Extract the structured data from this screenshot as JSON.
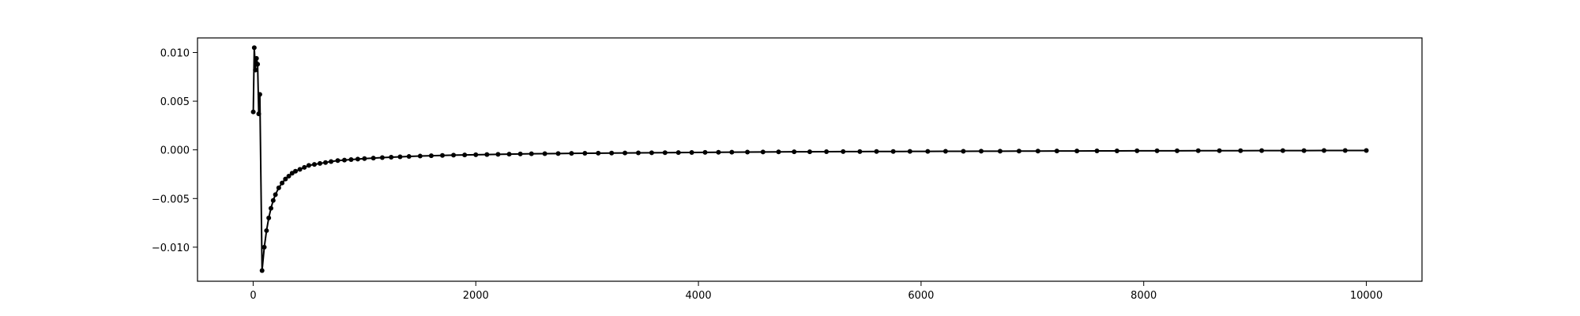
{
  "chart_data": {
    "type": "line",
    "title": "",
    "xlabel": "",
    "ylabel": "",
    "xlim": [
      -500,
      10500
    ],
    "ylim": [
      -0.0135,
      0.0115
    ],
    "grid": false,
    "line_color": "#000000",
    "marker": "dot",
    "x_ticks": [
      {
        "value": 0,
        "label": "0"
      },
      {
        "value": 2000,
        "label": "2000"
      },
      {
        "value": 4000,
        "label": "4000"
      },
      {
        "value": 6000,
        "label": "6000"
      },
      {
        "value": 8000,
        "label": "8000"
      },
      {
        "value": 10000,
        "label": "10000"
      }
    ],
    "y_ticks": [
      {
        "value": 0.01,
        "label": "0.010"
      },
      {
        "value": 0.005,
        "label": "0.005"
      },
      {
        "value": 0.0,
        "label": "0.000"
      },
      {
        "value": -0.005,
        "label": "−0.005"
      },
      {
        "value": -0.01,
        "label": "−0.010"
      }
    ],
    "series": [
      {
        "x": [
          1,
          10,
          20,
          30,
          40,
          50,
          60,
          80,
          100,
          120,
          140,
          160,
          180,
          200,
          230,
          260,
          290,
          320,
          350,
          380,
          420,
          460,
          500,
          550,
          600,
          650,
          700,
          760,
          820,
          880,
          940,
          1000,
          1080,
          1160,
          1240,
          1320,
          1400,
          1500,
          1600,
          1700,
          1800,
          1900,
          2000,
          2100,
          2200,
          2300,
          2400,
          2500,
          2620,
          2740,
          2860,
          2980,
          3100,
          3220,
          3340,
          3460,
          3580,
          3700,
          3820,
          3940,
          4060,
          4180,
          4300,
          4440,
          4580,
          4720,
          4860,
          5000,
          5150,
          5300,
          5450,
          5600,
          5750,
          5900,
          6060,
          6220,
          6380,
          6540,
          6710,
          6880,
          7050,
          7220,
          7400,
          7580,
          7760,
          7940,
          8120,
          8300,
          8490,
          8680,
          8870,
          9060,
          9250,
          9440,
          9620,
          9810,
          10000
        ],
        "y": [
          0.0039,
          0.0105,
          0.0082,
          0.0094,
          0.0088,
          0.0037,
          0.0057,
          -0.0124,
          -0.01,
          -0.0083,
          -0.007,
          -0.006,
          -0.0052,
          -0.0046,
          -0.0039,
          -0.0034,
          -0.003,
          -0.0027,
          -0.0024,
          -0.0022,
          -0.002,
          -0.0018,
          -0.0016,
          -0.0015,
          -0.0014,
          -0.0013,
          -0.0012,
          -0.0011,
          -0.00105,
          -0.001,
          -0.00095,
          -0.0009,
          -0.00085,
          -0.0008,
          -0.00076,
          -0.00072,
          -0.00068,
          -0.00064,
          -0.0006,
          -0.00057,
          -0.00054,
          -0.00052,
          -0.0005,
          -0.00048,
          -0.00046,
          -0.00044,
          -0.00042,
          -0.0004,
          -0.00039,
          -0.00038,
          -0.00036,
          -0.00035,
          -0.00034,
          -0.00033,
          -0.00032,
          -0.00031,
          -0.0003,
          -0.00029,
          -0.00028,
          -0.00027,
          -0.00026,
          -0.00025,
          -0.00024,
          -0.00023,
          -0.00022,
          -0.00021,
          -0.0002,
          -0.0002,
          -0.00019,
          -0.00018,
          -0.00018,
          -0.00017,
          -0.00017,
          -0.00016,
          -0.00016,
          -0.00015,
          -0.00015,
          -0.00014,
          -0.00014,
          -0.00013,
          -0.00013,
          -0.00012,
          -0.00012,
          -0.00011,
          -0.00011,
          -0.0001,
          -0.0001,
          -0.0001,
          -9e-05,
          -9e-05,
          -9e-05,
          -8e-05,
          -8e-05,
          -8e-05,
          -7e-05,
          -7e-05,
          -7e-05
        ]
      }
    ]
  }
}
